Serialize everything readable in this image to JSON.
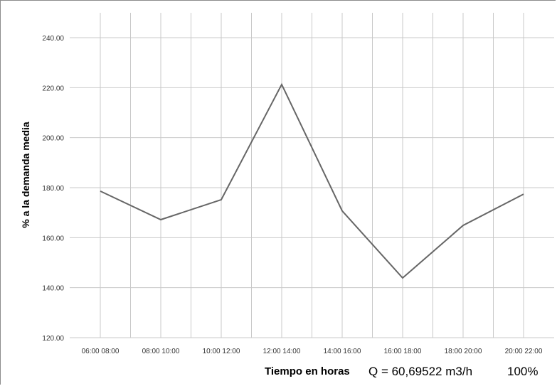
{
  "chart_data": {
    "type": "line",
    "categories": [
      "06:00 08:00",
      "08:00 10:00",
      "10:00 12:00",
      "12:00 14:00",
      "14:00 16:00",
      "16:00 18:00",
      "18:00 20:00",
      "20:00 22:00"
    ],
    "series": [
      {
        "values": [
          178.6,
          167.2,
          175.2,
          221.3,
          170.7,
          143.9,
          164.9,
          177.4
        ]
      }
    ],
    "ylabel": "%  a la demanda media",
    "xlabel": "Tiempo en horas",
    "ylim": [
      120,
      240
    ],
    "yticks": [
      "120.00",
      "140.00",
      "160.00",
      "180.00",
      "200.00",
      "220.00",
      "240.00"
    ],
    "grid": true,
    "line_color": "#666666",
    "grid_color": "#c8c8c8",
    "annotations": [
      "Q = 60,69522 m3/h",
      "100%"
    ]
  }
}
